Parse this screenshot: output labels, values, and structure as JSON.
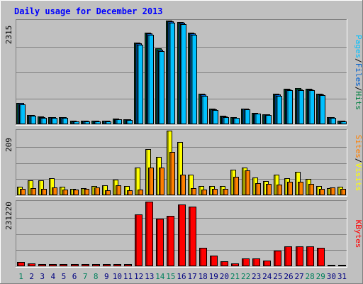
{
  "chart_data": [
    {
      "panel": "hits-files-pages",
      "type": "bar",
      "title": "Daily usage for December 2013",
      "max_label": "2315",
      "ylim": [
        0,
        2315
      ],
      "legend": [
        {
          "label": "Pages",
          "color": "#00c0ff"
        },
        {
          "label": "Files",
          "color": "#0060d0"
        },
        {
          "label": "Hits",
          "color": "#008040"
        }
      ],
      "series": [
        {
          "name": "Hits",
          "color": "#008040",
          "values": [
            482,
            213,
            168,
            160,
            165,
            75,
            85,
            85,
            85,
            125,
            118,
            1830,
            2053,
            1690,
            2315,
            2283,
            2045,
            676,
            342,
            188,
            159,
            355,
            256,
            227,
            676,
            799,
            801,
            791,
            683,
            163,
            85
          ]
        },
        {
          "name": "Files",
          "color": "#0060d0",
          "values": [
            470,
            204,
            160,
            152,
            157,
            68,
            78,
            78,
            78,
            117,
            110,
            1810,
            2034,
            1670,
            2296,
            2264,
            2026,
            660,
            329,
            178,
            150,
            343,
            245,
            217,
            660,
            782,
            784,
            774,
            667,
            154,
            78
          ]
        },
        {
          "name": "Pages",
          "color": "#00c0ff",
          "values": [
            450,
            190,
            145,
            140,
            143,
            58,
            68,
            68,
            68,
            107,
            100,
            1780,
            2000,
            1640,
            2270,
            2235,
            1995,
            640,
            314,
            165,
            138,
            328,
            232,
            204,
            640,
            762,
            764,
            754,
            647,
            140,
            68
          ]
        }
      ]
    },
    {
      "panel": "visits-sites",
      "type": "bar",
      "max_label": "209",
      "ylim": [
        0,
        209
      ],
      "legend": [
        {
          "label": "Sites",
          "color": "#ff8000"
        },
        {
          "label": "Visits",
          "color": "#ffff00"
        }
      ],
      "series": [
        {
          "name": "Visits",
          "color": "#ffff00",
          "values": [
            28,
            49,
            48,
            54,
            28,
            20,
            23,
            31,
            33,
            51,
            30,
            89,
            149,
            125,
            209,
            172,
            67,
            31,
            30,
            30,
            82,
            90,
            58,
            47,
            67,
            55,
            75,
            52,
            31,
            24,
            27
          ]
        },
        {
          "name": "Sites",
          "color": "#ff8000",
          "values": [
            20,
            22,
            20,
            25,
            18,
            18,
            20,
            26,
            15,
            33,
            15,
            18,
            90,
            90,
            140,
            66,
            23,
            18,
            21,
            20,
            60,
            80,
            40,
            36,
            35,
            43,
            44,
            36,
            20,
            26,
            20
          ]
        }
      ]
    },
    {
      "panel": "kbytes",
      "type": "bar",
      "max_label": "231220",
      "ylim": [
        0,
        231220
      ],
      "legend": [
        {
          "label": "KBytes",
          "color": "#ff0000"
        }
      ],
      "series": [
        {
          "name": "KBytes",
          "color": "#ff0000",
          "values": [
            14500,
            9500,
            8500,
            8000,
            8000,
            7000,
            7000,
            7000,
            7000,
            7000,
            7000,
            185000,
            231220,
            169000,
            180000,
            220000,
            214000,
            67000,
            38000,
            17000,
            10000,
            27000,
            27000,
            21000,
            55000,
            72000,
            72000,
            72000,
            67000,
            6000,
            6000
          ]
        }
      ]
    }
  ],
  "x_axis": {
    "labels": [
      "1",
      "2",
      "3",
      "4",
      "5",
      "6",
      "7",
      "8",
      "9",
      "10",
      "11",
      "12",
      "13",
      "14",
      "15",
      "16",
      "17",
      "18",
      "19",
      "20",
      "21",
      "22",
      "23",
      "24",
      "25",
      "26",
      "27",
      "28",
      "29",
      "30",
      "31"
    ],
    "weekend_days": [
      1,
      7,
      8,
      14,
      15,
      21,
      22,
      28,
      29
    ],
    "weekday_color": "#000080",
    "weekend_color": "#00805c"
  },
  "colors": {
    "background": "#c0c0c0",
    "title": "#0000ff",
    "frame_light": "#ffffff",
    "frame_dark": "#808080",
    "gridline": "#808080"
  }
}
